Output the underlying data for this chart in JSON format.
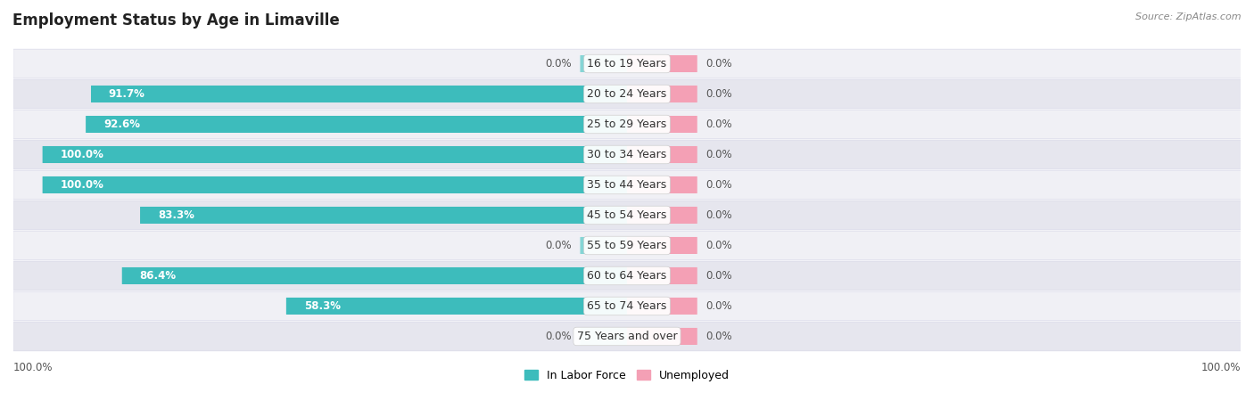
{
  "title": "Employment Status by Age in Limaville",
  "source": "Source: ZipAtlas.com",
  "categories": [
    "16 to 19 Years",
    "20 to 24 Years",
    "25 to 29 Years",
    "30 to 34 Years",
    "35 to 44 Years",
    "45 to 54 Years",
    "55 to 59 Years",
    "60 to 64 Years",
    "65 to 74 Years",
    "75 Years and over"
  ],
  "labor_force": [
    0.0,
    91.7,
    92.6,
    100.0,
    100.0,
    83.3,
    0.0,
    86.4,
    58.3,
    0.0
  ],
  "unemployed": [
    0.0,
    0.0,
    0.0,
    0.0,
    0.0,
    0.0,
    0.0,
    0.0,
    0.0,
    0.0
  ],
  "labor_force_color": "#3dbcbc",
  "labor_force_zero_color": "#85d5d5",
  "unemployed_color": "#f4a0b5",
  "row_bg_colors": [
    "#f0f0f5",
    "#e6e6ee"
  ],
  "row_border_color": "#d8d8e8",
  "title_fontsize": 12,
  "label_fontsize": 9,
  "bar_label_fontsize": 8.5,
  "legend_fontsize": 9,
  "axis_label_fontsize": 8.5,
  "bar_text_color_inside": "#ffffff",
  "bar_text_color_outside": "#555555",
  "center_label_color": "#333333",
  "zero_stub_size": 8.0,
  "pink_stub_size": 12.0,
  "max_lf": 100.0
}
